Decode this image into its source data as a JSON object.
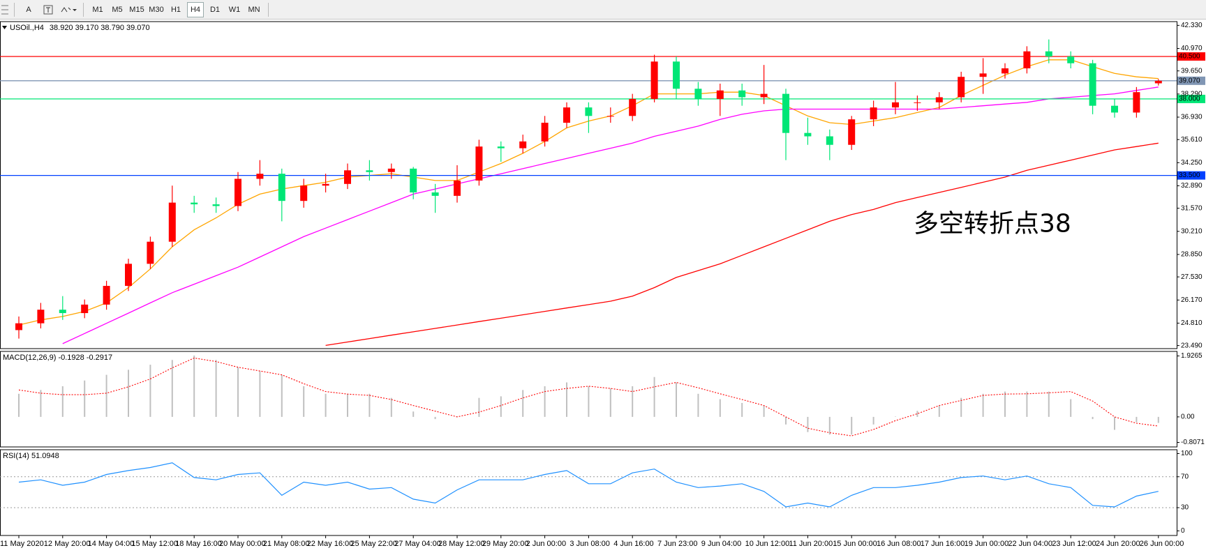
{
  "toolbar": {
    "text_tool": "A",
    "timeframes": [
      "M1",
      "M5",
      "M15",
      "M30",
      "H1",
      "H4",
      "D1",
      "W1",
      "MN"
    ],
    "active": "H4"
  },
  "chart_data": [
    {
      "type": "candlestick",
      "symbol": "USOil.,H4",
      "quote": "38.920 39.170 38.790 39.070",
      "annotation": "多空转折点38",
      "categories": [
        "11 May 2020",
        null,
        "12 May 20:00",
        null,
        "14 May 04:00",
        null,
        "15 May 12:00",
        null,
        "18 May 16:00",
        null,
        "20 May 00:00",
        null,
        "21 May 08:00",
        null,
        "22 May 16:00",
        null,
        "25 May 22:00",
        null,
        "27 May 04:00",
        null,
        "28 May 12:00",
        null,
        "29 May 20:00",
        null,
        "2 Jun 00:00",
        null,
        "3 Jun 08:00",
        null,
        "4 Jun 16:00",
        null,
        "7 Jun 23:00",
        null,
        "9 Jun 04:00",
        null,
        "10 Jun 12:00",
        null,
        "11 Jun 20:00",
        null,
        "15 Jun 00:00",
        null,
        "16 Jun 08:00",
        null,
        "17 Jun 16:00",
        null,
        "19 Jun 00:00",
        null,
        "22 Jun 04:00",
        null,
        "23 Jun 12:00",
        null,
        "24 Jun 20:00",
        null,
        "26 Jun 00:00"
      ],
      "open": [
        24.4,
        24.8,
        25.6,
        25.4,
        25.9,
        27.0,
        28.3,
        29.6,
        31.9,
        31.8,
        31.7,
        33.3,
        33.6,
        32.0,
        32.9,
        33.0,
        33.8,
        33.7,
        33.9,
        32.5,
        32.3,
        33.2,
        35.2,
        35.1,
        35.5,
        36.6,
        37.5,
        37.0,
        37.0,
        38.0,
        40.2,
        38.6,
        38.0,
        38.5,
        38.1,
        38.3,
        36.0,
        35.8,
        35.3,
        36.8,
        37.5,
        37.8,
        37.8,
        38.1,
        39.3,
        39.5,
        39.8,
        40.8,
        40.5,
        40.1,
        37.6,
        37.2,
        38.92
      ],
      "high": [
        25.2,
        26.0,
        26.4,
        26.2,
        27.3,
        28.6,
        29.9,
        32.9,
        32.3,
        32.2,
        33.7,
        34.4,
        33.9,
        33.3,
        33.6,
        34.2,
        34.4,
        34.2,
        34.0,
        33.0,
        34.1,
        35.6,
        35.5,
        35.9,
        37.0,
        37.8,
        37.8,
        37.5,
        38.3,
        40.6,
        40.5,
        39.0,
        38.9,
        38.9,
        40.0,
        38.6,
        36.9,
        36.2,
        37.0,
        37.9,
        39.0,
        38.2,
        38.4,
        39.6,
        40.4,
        40.1,
        41.1,
        41.5,
        40.8,
        40.3,
        38.0,
        38.7,
        39.17
      ],
      "low": [
        23.9,
        24.5,
        25.0,
        25.1,
        25.6,
        26.7,
        28.0,
        29.3,
        31.3,
        31.3,
        31.4,
        32.9,
        30.8,
        31.6,
        32.5,
        32.7,
        33.2,
        33.3,
        32.1,
        31.3,
        31.9,
        32.9,
        34.3,
        34.8,
        35.2,
        36.3,
        36.0,
        36.6,
        36.7,
        37.8,
        38.0,
        37.6,
        37.0,
        37.6,
        37.7,
        34.4,
        35.3,
        34.4,
        35.0,
        36.4,
        37.1,
        37.3,
        37.4,
        37.8,
        38.3,
        39.2,
        39.5,
        40.1,
        39.8,
        37.1,
        36.9,
        36.9,
        38.79
      ],
      "close": [
        24.8,
        25.6,
        25.4,
        25.9,
        27.0,
        28.3,
        29.6,
        31.9,
        31.8,
        31.7,
        33.3,
        33.6,
        32.0,
        32.9,
        33.0,
        33.8,
        33.7,
        33.9,
        32.5,
        32.3,
        33.2,
        35.2,
        35.1,
        35.5,
        36.6,
        37.5,
        37.0,
        37.0,
        38.0,
        40.2,
        38.6,
        38.0,
        38.5,
        38.1,
        38.3,
        36.0,
        35.8,
        35.3,
        36.8,
        37.5,
        37.8,
        37.8,
        38.1,
        39.3,
        39.5,
        39.8,
        40.8,
        40.5,
        40.1,
        37.6,
        37.2,
        38.4,
        39.07
      ],
      "up_color": "#ff0000",
      "down_color": "#00e676",
      "lines": [
        {
          "color": "#ffa500",
          "values": [
            24.7,
            25.0,
            25.2,
            25.5,
            26.0,
            26.9,
            28.0,
            29.3,
            30.3,
            31.0,
            31.8,
            32.4,
            32.7,
            32.9,
            33.1,
            33.4,
            33.5,
            33.6,
            33.4,
            33.2,
            33.2,
            33.7,
            34.2,
            34.8,
            35.5,
            36.3,
            36.7,
            37.0,
            37.6,
            38.3,
            38.3,
            38.3,
            38.4,
            38.4,
            38.2,
            37.6,
            37.0,
            36.6,
            36.5,
            36.7,
            36.9,
            37.2,
            37.5,
            38.2,
            38.8,
            39.4,
            39.9,
            40.3,
            40.3,
            39.9,
            39.5,
            39.3,
            39.2
          ]
        },
        {
          "color": "#ff00ff",
          "values": [
            null,
            null,
            23.6,
            24.2,
            24.8,
            25.4,
            26.0,
            26.6,
            27.1,
            27.6,
            28.1,
            28.7,
            29.3,
            29.9,
            30.4,
            30.9,
            31.4,
            31.9,
            32.4,
            32.7,
            33.0,
            33.3,
            33.6,
            33.9,
            34.2,
            34.5,
            34.8,
            35.1,
            35.4,
            35.8,
            36.1,
            36.4,
            36.8,
            37.1,
            37.3,
            37.4,
            37.4,
            37.4,
            37.4,
            37.4,
            37.4,
            37.4,
            37.4,
            37.5,
            37.6,
            37.7,
            37.8,
            38.0,
            38.1,
            38.2,
            38.3,
            38.5,
            38.7
          ]
        },
        {
          "color": "#ff0000",
          "values": [
            null,
            null,
            null,
            null,
            null,
            null,
            null,
            null,
            null,
            null,
            null,
            null,
            null,
            null,
            23.5,
            23.7,
            23.9,
            24.1,
            24.3,
            24.5,
            24.7,
            24.9,
            25.1,
            25.3,
            25.5,
            25.7,
            25.9,
            26.1,
            26.4,
            26.9,
            27.5,
            27.9,
            28.3,
            28.8,
            29.3,
            29.8,
            30.3,
            30.8,
            31.2,
            31.5,
            31.9,
            32.2,
            32.5,
            32.8,
            33.1,
            33.4,
            33.8,
            34.1,
            34.4,
            34.7,
            35.0,
            35.2,
            35.4
          ]
        }
      ],
      "levels": [
        {
          "value": 40.5,
          "label": "40.500",
          "color": "#ff0000"
        },
        {
          "value": 39.07,
          "label": "39.070",
          "color": "#8096b4"
        },
        {
          "value": 38.0,
          "label": "38.000",
          "color": "#00e676"
        },
        {
          "value": 33.5,
          "label": "33.500",
          "color": "#0040ff"
        }
      ],
      "ylim": [
        23.31,
        42.55
      ],
      "yticks": [
        {
          "value": 42.33,
          "label": "42.330"
        },
        {
          "value": 40.97,
          "label": "40.970"
        },
        {
          "value": 39.65,
          "label": "39.650"
        },
        {
          "value": 38.29,
          "label": "38.290"
        },
        {
          "value": 36.93,
          "label": "36.930"
        },
        {
          "value": 35.61,
          "label": "35.610"
        },
        {
          "value": 34.25,
          "label": "34.250"
        },
        {
          "value": 32.89,
          "label": "32.890"
        },
        {
          "value": 31.57,
          "label": "31.570"
        },
        {
          "value": 30.21,
          "label": "30.210"
        },
        {
          "value": 28.85,
          "label": "28.850"
        },
        {
          "value": 27.53,
          "label": "27.530"
        },
        {
          "value": 26.17,
          "label": "26.170"
        },
        {
          "value": 24.81,
          "label": "24.810"
        },
        {
          "value": 23.49,
          "label": "23.490"
        }
      ]
    },
    {
      "type": "macd",
      "title": "MACD(12,26,9) -0.1928 -0.2917",
      "histogram": [
        0.73,
        0.85,
        0.97,
        1.15,
        1.33,
        1.49,
        1.65,
        1.8,
        1.94,
        1.8,
        1.57,
        1.45,
        1.33,
        0.97,
        0.73,
        0.73,
        0.73,
        0.6,
        0.17,
        -0.07,
        0.02,
        0.6,
        0.65,
        0.85,
        0.97,
        1.09,
        0.97,
        0.9,
        0.97,
        1.26,
        1.09,
        0.73,
        0.56,
        0.44,
        0.36,
        -0.24,
        -0.48,
        -0.56,
        -0.56,
        -0.24,
        0.01,
        0.19,
        0.36,
        0.6,
        0.73,
        0.8,
        0.8,
        0.8,
        0.56,
        -0.07,
        -0.41,
        -0.17,
        -0.19
      ],
      "signal": [
        0.85,
        0.75,
        0.7,
        0.7,
        0.75,
        0.95,
        1.2,
        1.55,
        1.86,
        1.75,
        1.57,
        1.45,
        1.33,
        1.05,
        0.8,
        0.72,
        0.68,
        0.55,
        0.36,
        0.18,
        0,
        0.15,
        0.36,
        0.6,
        0.8,
        0.9,
        0.97,
        0.9,
        0.8,
        0.95,
        1.09,
        0.92,
        0.73,
        0.55,
        0.36,
        0,
        -0.36,
        -0.5,
        -0.6,
        -0.4,
        -0.12,
        0.1,
        0.36,
        0.52,
        0.68,
        0.72,
        0.73,
        0.76,
        0.8,
        0.5,
        0,
        -0.2,
        -0.29
      ],
      "histogram_color": "#c0c0c0",
      "signal_color": "#ff0000",
      "ylim": [
        -0.95,
        2.07
      ],
      "yticks": [
        1.9265,
        {
          "value": 0,
          "label": "0.00"
        },
        -0.8071
      ]
    },
    {
      "type": "line",
      "title": "RSI(14) 51.0948",
      "values": [
        63,
        66,
        59,
        63,
        73,
        78,
        82,
        88,
        69,
        66,
        73,
        75,
        46,
        63,
        59,
        63,
        54,
        56,
        41,
        36,
        53,
        66,
        66,
        66,
        73,
        78,
        61,
        61,
        75,
        80,
        63,
        56,
        58,
        61,
        51,
        31,
        36,
        31,
        46,
        56,
        56,
        59,
        63,
        69,
        71,
        66,
        71,
        61,
        56,
        33,
        31,
        45,
        51.1
      ],
      "color": "#1e90ff",
      "level_lines": [
        30,
        70
      ],
      "ylim": [
        -6,
        105
      ],
      "yticks": [
        100,
        70,
        30,
        0
      ]
    }
  ]
}
